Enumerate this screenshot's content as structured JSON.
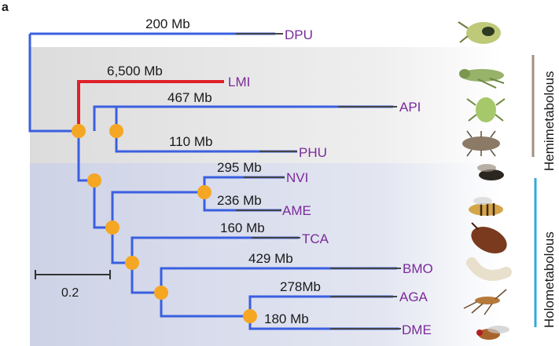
{
  "panel_label": "a",
  "scale_bar": {
    "label": "0.2"
  },
  "taxa": [
    {
      "code": "DPU",
      "genome_size": "200 Mb"
    },
    {
      "code": "LMI",
      "genome_size": "6,500 Mb"
    },
    {
      "code": "API",
      "genome_size": "467 Mb"
    },
    {
      "code": "PHU",
      "genome_size": "110 Mb"
    },
    {
      "code": "NVI",
      "genome_size": "295 Mb"
    },
    {
      "code": "AME",
      "genome_size": "236 Mb"
    },
    {
      "code": "TCA",
      "genome_size": "160 Mb"
    },
    {
      "code": "BMO",
      "genome_size": "429 Mb"
    },
    {
      "code": "AGA",
      "genome_size": "278Mb"
    },
    {
      "code": "DME",
      "genome_size": "180 Mb"
    }
  ],
  "groups": [
    {
      "label": "Hemimetabolous",
      "bar_color": "#a08f80"
    },
    {
      "label": "Holometabolous",
      "bar_color": "#33a8d8"
    }
  ],
  "colors": {
    "branch": "#3a5fe0",
    "highlight_branch": "#e0202a",
    "terminal_branch": "#444444",
    "node": "#f5a623",
    "taxon_text": "#7a2a9a",
    "hemi_bg": "#e3e3e3",
    "holo_bg": "#d5d9ea"
  },
  "thumbnails": [
    {
      "taxon": "DPU",
      "icon": "water-flea-icon"
    },
    {
      "taxon": "LMI",
      "icon": "locust-icon"
    },
    {
      "taxon": "API",
      "icon": "aphid-icon"
    },
    {
      "taxon": "PHU",
      "icon": "louse-icon"
    },
    {
      "taxon": "NVI",
      "icon": "wasp-icon"
    },
    {
      "taxon": "AME",
      "icon": "honeybee-icon"
    },
    {
      "taxon": "TCA",
      "icon": "beetle-icon"
    },
    {
      "taxon": "BMO",
      "icon": "silkworm-icon"
    },
    {
      "taxon": "AGA",
      "icon": "mosquito-icon"
    },
    {
      "taxon": "DME",
      "icon": "fruit-fly-icon"
    }
  ]
}
